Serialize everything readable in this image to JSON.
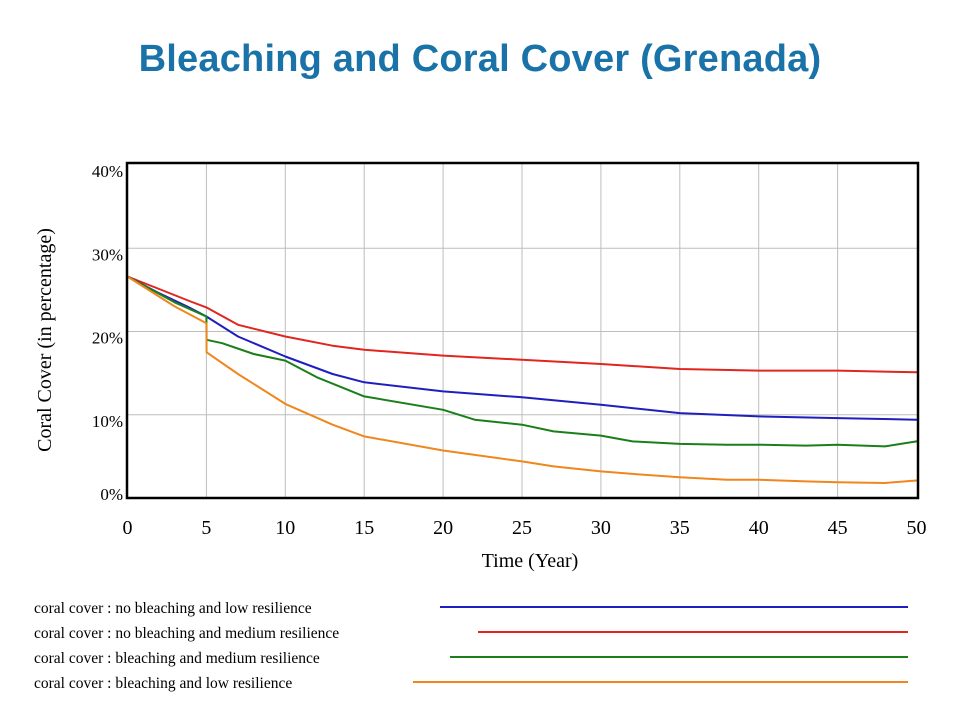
{
  "chart_data": {
    "type": "line",
    "title": "Bleaching and Coral Cover (Grenada)",
    "xlabel": "Time (Year)",
    "ylabel": "Coral Cover (in percentage)",
    "xlim": [
      0,
      50
    ],
    "ylim": [
      0,
      40
    ],
    "x_ticks": [
      "0",
      "5",
      "10",
      "15",
      "20",
      "25",
      "30",
      "35",
      "40",
      "45",
      "50"
    ],
    "y_ticks": [
      "0%",
      "10%",
      "20%",
      "30%",
      "40%"
    ],
    "grid": true,
    "legend_position": "bottom",
    "series": [
      {
        "name": "coral cover : no bleaching and low resilience",
        "color": "#1f1fbf",
        "x": [
          0,
          2,
          4,
          5,
          7,
          10,
          13,
          15,
          20,
          25,
          30,
          35,
          40,
          45,
          50
        ],
        "values": [
          26.6,
          24.6,
          22.8,
          21.8,
          19.4,
          17.0,
          14.9,
          13.9,
          12.8,
          12.1,
          11.2,
          10.2,
          9.8,
          9.6,
          9.4
        ]
      },
      {
        "name": "coral cover : no bleaching and medium resilience",
        "color": "#e0261f",
        "x": [
          0,
          2,
          4,
          5,
          7,
          10,
          13,
          15,
          20,
          25,
          30,
          35,
          40,
          45,
          50
        ],
        "values": [
          26.6,
          25.1,
          23.6,
          22.9,
          20.8,
          19.4,
          18.3,
          17.8,
          17.1,
          16.6,
          16.1,
          15.5,
          15.3,
          15.3,
          15.1
        ]
      },
      {
        "name": "coral cover : bleaching and medium resilience",
        "color": "#1a7f1a",
        "x": [
          0,
          3,
          5,
          5.01,
          6,
          8,
          10,
          12,
          15,
          20,
          22,
          25,
          27,
          30,
          32,
          35,
          38,
          40,
          43,
          45,
          48,
          50
        ],
        "values": [
          26.6,
          23.5,
          21.8,
          19.0,
          18.6,
          17.3,
          16.5,
          14.5,
          12.2,
          10.6,
          9.4,
          8.8,
          8.0,
          7.5,
          6.8,
          6.5,
          6.4,
          6.4,
          6.3,
          6.4,
          6.2,
          6.8
        ]
      },
      {
        "name": "coral cover : bleaching and low resilience",
        "color": "#f0861e",
        "x": [
          0,
          3,
          5,
          5.01,
          7,
          10,
          13,
          15,
          20,
          25,
          27,
          30,
          32,
          35,
          38,
          40,
          43,
          45,
          48,
          50
        ],
        "values": [
          26.6,
          23.0,
          21.0,
          17.5,
          14.9,
          11.3,
          8.8,
          7.4,
          5.7,
          4.4,
          3.8,
          3.2,
          2.9,
          2.5,
          2.2,
          2.2,
          2.0,
          1.9,
          1.8,
          2.1
        ]
      }
    ]
  }
}
